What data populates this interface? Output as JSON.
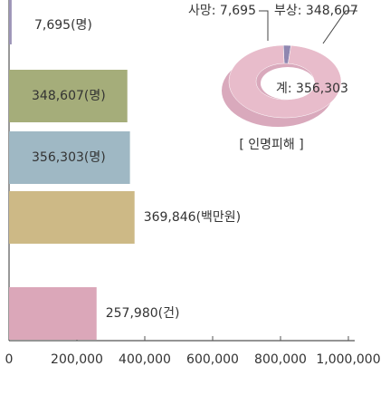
{
  "chart_data": [
    {
      "type": "bar",
      "orientation": "horizontal",
      "values": [
        7695,
        348607,
        356303,
        369846,
        257980
      ],
      "value_labels": [
        "7,695(명)",
        "348,607(명)",
        "356,303(명)",
        "369,846(백만원)",
        "257,980(건)"
      ],
      "colors": [
        "#9d95b8",
        "#a5ad7a",
        "#9fb8c4",
        "#cdb986",
        "#dba7b9"
      ],
      "xlim": [
        0,
        1000000
      ],
      "xticks": [
        0,
        {
          "value": 200000,
          "label": "200,000"
        },
        {
          "value": 400000,
          "label": "400,000"
        },
        {
          "value": 600000,
          "label": "600,000"
        },
        {
          "value": 800000,
          "label": "800,000"
        },
        {
          "value": 1000000,
          "label": "1,000,000"
        }
      ]
    },
    {
      "type": "pie",
      "donut": true,
      "title": "[ 인명피해 ]",
      "values": [
        7695,
        348607
      ],
      "value_labels": [
        "사망: 7,695",
        "부상: 348,607"
      ],
      "colors": [
        "#8f87b0",
        "#e8bccb"
      ],
      "total_label": "계: 356,303"
    }
  ]
}
